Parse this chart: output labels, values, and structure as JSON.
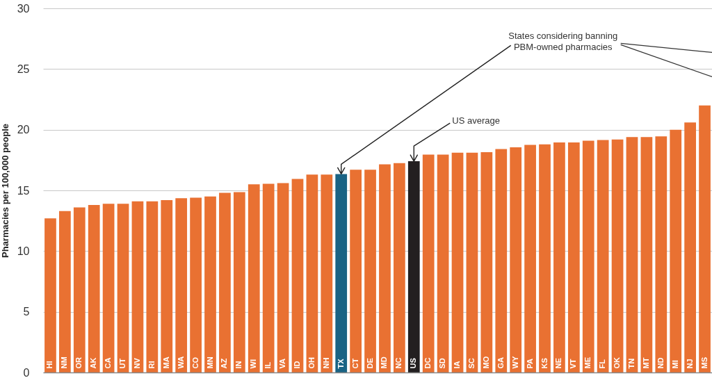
{
  "chart_data": {
    "type": "bar",
    "ylabel": "Pharmacies per 100,000 people",
    "categories": [
      "HI",
      "NM",
      "OR",
      "AK",
      "CA",
      "UT",
      "NV",
      "RI",
      "MA",
      "WA",
      "CO",
      "MN",
      "AZ",
      "IN",
      "WI",
      "IL",
      "VA",
      "ID",
      "OH",
      "NH",
      "TX",
      "CT",
      "DE",
      "MD",
      "NC",
      "US",
      "DC",
      "SD",
      "IA",
      "SC",
      "MO",
      "GA",
      "WY",
      "PA",
      "KS",
      "NE",
      "VT",
      "ME",
      "FL",
      "OK",
      "TN",
      "MT",
      "ND",
      "MI",
      "NJ",
      "MS"
    ],
    "values": [
      12.7,
      13.3,
      13.6,
      13.8,
      13.9,
      13.9,
      14.1,
      14.1,
      14.2,
      14.35,
      14.4,
      14.5,
      14.8,
      14.85,
      15.5,
      15.55,
      15.6,
      15.95,
      16.3,
      16.3,
      16.35,
      16.7,
      16.7,
      17.15,
      17.25,
      17.4,
      17.95,
      17.95,
      18.1,
      18.1,
      18.15,
      18.4,
      18.55,
      18.75,
      18.8,
      18.95,
      18.95,
      19.1,
      19.15,
      19.2,
      19.4,
      19.4,
      19.45,
      20.0,
      20.6,
      22.0
    ],
    "colors": [
      "#e97132",
      "#e97132",
      "#e97132",
      "#e97132",
      "#e97132",
      "#e97132",
      "#e97132",
      "#e97132",
      "#e97132",
      "#e97132",
      "#e97132",
      "#e97132",
      "#e97132",
      "#e97132",
      "#e97132",
      "#e97132",
      "#e97132",
      "#e97132",
      "#e97132",
      "#e97132",
      "#1a6384",
      "#e97132",
      "#e97132",
      "#e97132",
      "#e97132",
      "#231f20",
      "#e97132",
      "#e97132",
      "#e97132",
      "#e97132",
      "#e97132",
      "#e97132",
      "#e97132",
      "#e97132",
      "#e97132",
      "#e97132",
      "#e97132",
      "#e97132",
      "#e97132",
      "#e97132",
      "#e97132",
      "#e97132",
      "#e97132",
      "#e97132",
      "#e97132",
      "#e97132"
    ],
    "ylim": [
      0,
      30
    ],
    "yticks": [
      0,
      5,
      10,
      15,
      20,
      25,
      30
    ],
    "grid": "y",
    "annotations": [
      {
        "text": "US average",
        "x": "US",
        "y": 17.4
      },
      {
        "text": "States considering banning PBM-owned pharmacies",
        "x": "TX",
        "y": 16.35
      }
    ]
  }
}
